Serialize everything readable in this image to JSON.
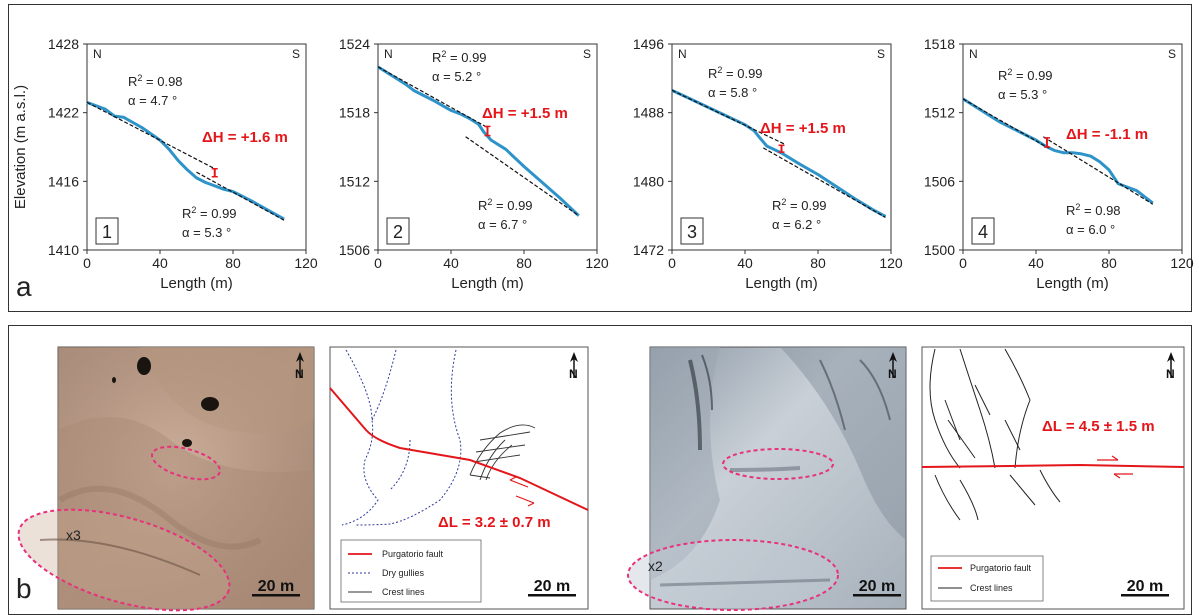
{
  "panel_a": {
    "letter": "a",
    "ylabel": "Elevation (m a.s.l.)",
    "xlabel": "Length (m)",
    "north": "N",
    "south": "S"
  },
  "panel_b": {
    "letter": "b",
    "north_label": "N",
    "map1": {
      "magnify": "x3",
      "scale": "20 m"
    },
    "sketch1": {
      "offset": "ΔL = 3.2 ± 0.7 m",
      "scale": "20 m",
      "legend": [
        "Purgatorio fault",
        "Dry gullies",
        "Crest lines"
      ]
    },
    "map2": {
      "magnify": "x2",
      "scale": "20 m"
    },
    "sketch2": {
      "offset": "ΔL = 4.5 ± 1.5 m",
      "scale": "20 m",
      "legend": [
        "Purgatorio fault",
        "Crest lines"
      ]
    }
  },
  "colors": {
    "profile": "#2e93c8",
    "accent_red": "#e3161b",
    "ellipse": "#e8317d",
    "gully": "#2d3a9c"
  },
  "chart_data": [
    {
      "type": "line",
      "number": "1",
      "xlim": [
        0,
        120
      ],
      "ylim": [
        1410,
        1428
      ],
      "xticks": [
        0,
        40,
        80,
        120
      ],
      "yticks": [
        1410,
        1416,
        1422,
        1428
      ],
      "xlabel": "Length (m)",
      "ylabel": "Elevation (m a.s.l.)",
      "series": [
        {
          "x": [
            0,
            5,
            10,
            15,
            20,
            30,
            40,
            45,
            50,
            55,
            60,
            65,
            70,
            75,
            80,
            90,
            100,
            108
          ],
          "y": [
            1422.9,
            1422.6,
            1422.3,
            1421.7,
            1421.6,
            1420.7,
            1419.6,
            1418.8,
            1417.8,
            1417.0,
            1416.3,
            1415.9,
            1415.6,
            1415.3,
            1415.1,
            1414.3,
            1413.4,
            1412.7
          ]
        }
      ],
      "fits": [
        {
          "x": [
            0,
            70
          ],
          "y": [
            1422.9,
            1417.1
          ]
        },
        {
          "x": [
            60,
            108
          ],
          "y": [
            1416.8,
            1412.6
          ]
        }
      ],
      "offset_marker": {
        "x": 70,
        "y1": 1416.4,
        "y2": 1417.1
      },
      "annotations": [
        {
          "text_r2": "0.98",
          "text_alpha": "α = 4.7 °"
        },
        {
          "text_r2": "0.99",
          "text_alpha": "α = 5.3 °"
        }
      ],
      "dH": "ΔH = +1.6 m"
    },
    {
      "type": "line",
      "number": "2",
      "xlim": [
        0,
        120
      ],
      "ylim": [
        1506,
        1524
      ],
      "xticks": [
        0,
        40,
        80,
        120
      ],
      "yticks": [
        1506,
        1512,
        1518,
        1524
      ],
      "xlabel": "Length (m)",
      "ylabel": "",
      "series": [
        {
          "x": [
            0,
            5,
            10,
            15,
            20,
            30,
            40,
            45,
            50,
            55,
            58,
            62,
            70,
            80,
            90,
            100,
            110
          ],
          "y": [
            1522.0,
            1521.5,
            1521.0,
            1520.5,
            1519.9,
            1519.1,
            1518.2,
            1517.9,
            1517.5,
            1517.0,
            1516.3,
            1515.6,
            1514.8,
            1513.3,
            1511.9,
            1510.5,
            1509.0
          ]
        }
      ],
      "fits": [
        {
          "x": [
            0,
            60
          ],
          "y": [
            1522.0,
            1516.7
          ]
        },
        {
          "x": [
            48,
            110
          ],
          "y": [
            1515.9,
            1509.0
          ]
        }
      ],
      "offset_marker": {
        "x": 60,
        "y1": 1516.0,
        "y2": 1516.8
      },
      "annotations": [
        {
          "text_r2": "0.99",
          "text_alpha": "α = 5.2 °"
        },
        {
          "text_r2": "0.99",
          "text_alpha": "α = 6.7 °"
        }
      ],
      "dH": "ΔH = +1.5 m"
    },
    {
      "type": "line",
      "number": "3",
      "xlim": [
        0,
        120
      ],
      "ylim": [
        1472,
        1496
      ],
      "xticks": [
        0,
        40,
        80,
        120
      ],
      "yticks": [
        1472,
        1480,
        1488,
        1496
      ],
      "xlabel": "Length (m)",
      "ylabel": "",
      "series": [
        {
          "x": [
            0,
            10,
            20,
            30,
            40,
            45,
            48,
            52,
            55,
            60,
            70,
            80,
            90,
            100,
            110,
            117
          ],
          "y": [
            1490.6,
            1489.6,
            1488.6,
            1487.6,
            1486.6,
            1485.9,
            1485.1,
            1484.1,
            1483.8,
            1483.3,
            1482.0,
            1480.8,
            1479.4,
            1478.0,
            1476.7,
            1475.9
          ]
        }
      ],
      "fits": [
        {
          "x": [
            0,
            62
          ],
          "y": [
            1490.6,
            1484.3
          ]
        },
        {
          "x": [
            50,
            117
          ],
          "y": [
            1483.9,
            1475.8
          ]
        }
      ],
      "offset_marker": {
        "x": 60,
        "y1": 1483.4,
        "y2": 1484.2
      },
      "annotations": [
        {
          "text_r2": "0.99",
          "text_alpha": "α = 5.8 °"
        },
        {
          "text_r2": "0.99",
          "text_alpha": "α = 6.2 °"
        }
      ],
      "dH": "ΔH = +1.5 m"
    },
    {
      "type": "line",
      "number": "4",
      "xlim": [
        0,
        120
      ],
      "ylim": [
        1500,
        1518
      ],
      "xticks": [
        0,
        40,
        80,
        120
      ],
      "yticks": [
        1500,
        1506,
        1512,
        1518
      ],
      "xlabel": "Length (m)",
      "ylabel": "",
      "series": [
        {
          "x": [
            0,
            10,
            20,
            30,
            40,
            45,
            50,
            55,
            60,
            65,
            70,
            75,
            80,
            85,
            90,
            95,
            100,
            104
          ],
          "y": [
            1513.2,
            1512.2,
            1511.2,
            1510.4,
            1509.6,
            1509.1,
            1508.7,
            1508.5,
            1508.5,
            1508.4,
            1508.2,
            1507.7,
            1507.0,
            1505.8,
            1505.5,
            1505.2,
            1504.6,
            1504.1
          ]
        }
      ],
      "fits": [
        {
          "x": [
            0,
            47
          ],
          "y": [
            1513.2,
            1508.9
          ]
        },
        {
          "x": [
            44,
            104
          ],
          "y": [
            1509.9,
            1504.0
          ]
        }
      ],
      "offset_marker": {
        "x": 46,
        "y1": 1509.0,
        "y2": 1509.8
      },
      "annotations": [
        {
          "text_r2": "0.99",
          "text_alpha": "α = 5.3 °"
        },
        {
          "text_r2": "0.98",
          "text_alpha": "α = 6.0 °"
        }
      ],
      "dH": "ΔH = -1.1 m"
    }
  ]
}
